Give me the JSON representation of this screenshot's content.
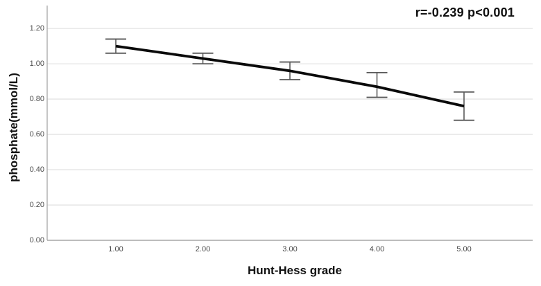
{
  "chart_data": {
    "type": "line",
    "title": "",
    "annotation": "r=-0.239 p<0.001",
    "xlabel": "Hunt-Hess grade",
    "ylabel": "phosphate(mmol/L)",
    "x_tick_labels": [
      "1.00",
      "2.00",
      "3.00",
      "4.00",
      "5.00"
    ],
    "y_tick_labels": [
      "0.00",
      "0.20",
      "0.40",
      "0.60",
      "0.80",
      "1.00",
      "1.20"
    ],
    "yticks": [
      0.0,
      0.2,
      0.4,
      0.6,
      0.8,
      1.0,
      1.2
    ],
    "ylim": [
      0,
      1.33
    ],
    "grid": "horizontal-only",
    "legend": "none",
    "series": [
      {
        "name": "mean phosphate with error bars",
        "x": [
          1,
          2,
          3,
          4,
          5
        ],
        "values": [
          1.1,
          1.03,
          0.96,
          0.87,
          0.76
        ],
        "error_low": [
          1.06,
          1.0,
          0.91,
          0.81,
          0.68
        ],
        "error_high": [
          1.14,
          1.06,
          1.01,
          0.95,
          0.84
        ]
      }
    ],
    "colors": {
      "line": "#0a0a0a",
      "error_bar": "#595959",
      "gridline": "#dedede",
      "axis": "#a6a6a6",
      "tick_label": "#4a4a4a",
      "title_text": "#111111",
      "background": "#ffffff"
    }
  }
}
